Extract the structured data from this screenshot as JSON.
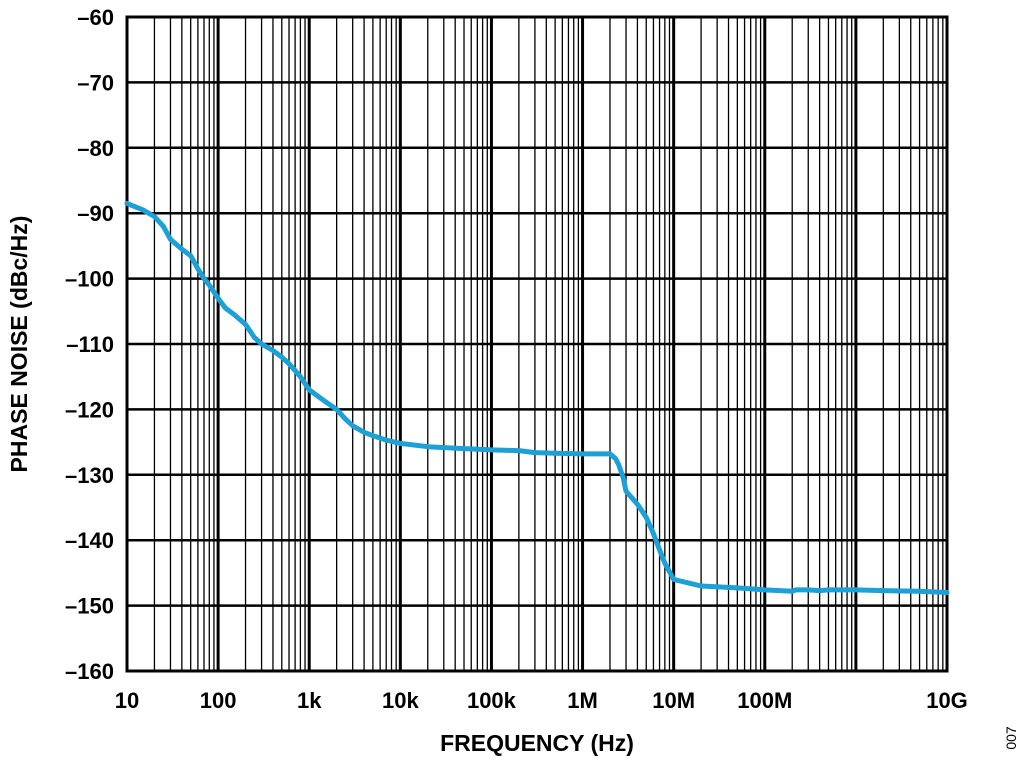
{
  "chart_data": {
    "type": "line",
    "title": "",
    "xlabel": "FREQUENCY (Hz)",
    "ylabel": "PHASE NOISE (dBc/Hz)",
    "xscale": "log",
    "xlim": [
      10,
      10000000000
    ],
    "ylim": [
      -160,
      -60
    ],
    "grid": true,
    "legend": "none",
    "x_ticks": [
      {
        "value": 10,
        "label": "10"
      },
      {
        "value": 100,
        "label": "100"
      },
      {
        "value": 1000,
        "label": "1k"
      },
      {
        "value": 10000,
        "label": "10k"
      },
      {
        "value": 100000,
        "label": "100k"
      },
      {
        "value": 1000000,
        "label": "1M"
      },
      {
        "value": 10000000,
        "label": "10M"
      },
      {
        "value": 100000000,
        "label": "100M"
      },
      {
        "value": 10000000000,
        "label": "10G"
      }
    ],
    "y_ticks": [
      {
        "value": -60,
        "label": "–60"
      },
      {
        "value": -70,
        "label": "–70"
      },
      {
        "value": -80,
        "label": "–80"
      },
      {
        "value": -90,
        "label": "–90"
      },
      {
        "value": -100,
        "label": "–100"
      },
      {
        "value": -110,
        "label": "–110"
      },
      {
        "value": -120,
        "label": "–120"
      },
      {
        "value": -130,
        "label": "–130"
      },
      {
        "value": -140,
        "label": "–140"
      },
      {
        "value": -150,
        "label": "–150"
      },
      {
        "value": -160,
        "label": "–160"
      }
    ],
    "series": [
      {
        "color": "#1ca0d6",
        "x": [
          10,
          15,
          20,
          25,
          30,
          40,
          50,
          60,
          70,
          80,
          100,
          120,
          150,
          200,
          250,
          300,
          400,
          500,
          600,
          800,
          1000,
          1500,
          2000,
          2500,
          3000,
          4000,
          5000,
          7000,
          10000,
          20000,
          50000,
          100000,
          200000,
          300000,
          500000,
          1000000,
          1500000,
          2000000,
          2300000,
          2500000,
          2800000,
          3000000,
          4000000,
          5000000,
          6000000,
          7000000,
          8000000,
          10000000,
          20000000,
          50000000,
          100000000,
          200000000,
          220000000,
          300000000,
          400000000,
          500000000,
          1000000000,
          2000000000,
          5000000000,
          10000000000
        ],
        "y": [
          -88.5,
          -89.5,
          -90.5,
          -92,
          -94,
          -95.5,
          -96.5,
          -98.5,
          -100,
          -101,
          -103,
          -104.5,
          -105.5,
          -107,
          -109,
          -110,
          -111,
          -112,
          -113,
          -115,
          -117,
          -118.8,
          -120,
          -121.5,
          -122.5,
          -123.5,
          -124,
          -124.7,
          -125.2,
          -125.7,
          -126,
          -126.2,
          -126.3,
          -126.6,
          -126.7,
          -126.8,
          -126.8,
          -126.8,
          -127.5,
          -128.5,
          -130.5,
          -132.5,
          -134.5,
          -136.5,
          -139,
          -141.5,
          -143.5,
          -146,
          -147,
          -147.3,
          -147.6,
          -147.8,
          -147.6,
          -147.6,
          -147.7,
          -147.6,
          -147.6,
          -147.7,
          -147.8,
          -148
        ]
      }
    ]
  },
  "figure_id": "007"
}
